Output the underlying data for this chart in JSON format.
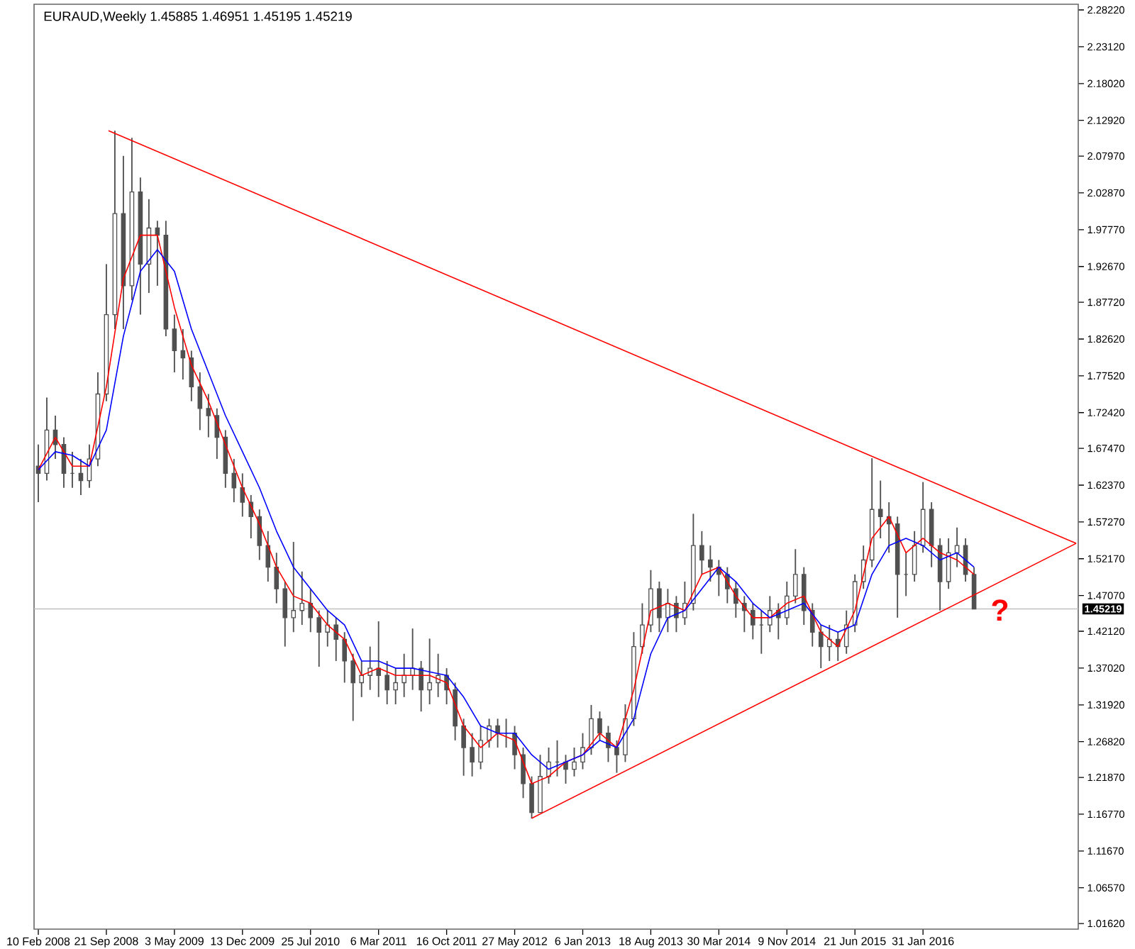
{
  "chart_data": {
    "type": "candlestick",
    "title": "EURAUD,Weekly  1.45885 1.46951 1.45195 1.45219",
    "color": "#505050",
    "x": [
      "2008-02-10",
      "2008-03-09",
      "2008-04-06",
      "2008-05-04",
      "2008-06-01",
      "2008-06-29",
      "2008-07-27",
      "2008-08-24",
      "2008-09-21",
      "2008-10-19",
      "2008-11-16",
      "2008-12-14",
      "2009-01-11",
      "2009-02-08",
      "2009-03-08",
      "2009-04-05",
      "2009-05-03",
      "2009-05-31",
      "2009-06-28",
      "2009-07-26",
      "2009-08-23",
      "2009-09-20",
      "2009-10-18",
      "2009-11-15",
      "2009-12-13",
      "2010-01-10",
      "2010-02-07",
      "2010-03-07",
      "2010-04-04",
      "2010-05-02",
      "2010-05-30",
      "2010-06-27",
      "2010-07-25",
      "2010-08-22",
      "2010-09-19",
      "2010-10-17",
      "2010-11-14",
      "2010-12-12",
      "2011-01-09",
      "2011-02-06",
      "2011-03-06",
      "2011-04-03",
      "2011-05-01",
      "2011-05-29",
      "2011-06-26",
      "2011-07-24",
      "2011-08-21",
      "2011-09-18",
      "2011-10-16",
      "2011-11-13",
      "2011-12-11",
      "2012-01-08",
      "2012-02-05",
      "2012-03-04",
      "2012-04-01",
      "2012-04-29",
      "2012-05-27",
      "2012-06-24",
      "2012-07-22",
      "2012-08-19",
      "2012-09-16",
      "2012-10-14",
      "2012-11-11",
      "2012-12-09",
      "2013-01-06",
      "2013-02-03",
      "2013-03-03",
      "2013-03-31",
      "2013-04-28",
      "2013-05-26",
      "2013-06-23",
      "2013-07-21",
      "2013-08-18",
      "2013-09-15",
      "2013-10-13",
      "2013-11-10",
      "2013-12-08",
      "2014-01-05",
      "2014-02-02",
      "2014-03-02",
      "2014-03-30",
      "2014-04-27",
      "2014-05-25",
      "2014-06-22",
      "2014-07-20",
      "2014-08-17",
      "2014-09-14",
      "2014-10-12",
      "2014-11-09",
      "2014-12-07",
      "2015-01-04",
      "2015-02-01",
      "2015-03-01",
      "2015-03-29",
      "2015-04-26",
      "2015-05-24",
      "2015-06-21",
      "2015-07-19",
      "2015-08-16",
      "2015-09-13",
      "2015-10-11",
      "2015-11-08",
      "2015-12-06",
      "2016-01-03",
      "2016-01-31",
      "2016-02-28",
      "2016-03-27",
      "2016-04-24",
      "2016-05-22",
      "2016-06-19",
      "2016-07-17"
    ],
    "ohlc": [
      [
        1.65,
        1.68,
        1.6,
        1.64
      ],
      [
        1.64,
        1.745,
        1.63,
        1.7
      ],
      [
        1.7,
        1.72,
        1.66,
        1.68
      ],
      [
        1.68,
        1.69,
        1.62,
        1.64
      ],
      [
        1.64,
        1.67,
        1.62,
        1.64
      ],
      [
        1.64,
        1.66,
        1.61,
        1.63
      ],
      [
        1.63,
        1.68,
        1.62,
        1.66
      ],
      [
        1.66,
        1.78,
        1.65,
        1.75
      ],
      [
        1.75,
        1.93,
        1.74,
        1.86
      ],
      [
        1.86,
        2.115,
        1.84,
        2.0
      ],
      [
        2.0,
        2.08,
        1.84,
        1.9
      ],
      [
        1.9,
        2.105,
        1.88,
        2.03
      ],
      [
        2.03,
        2.05,
        1.86,
        1.93
      ],
      [
        1.93,
        2.02,
        1.89,
        1.98
      ],
      [
        1.98,
        1.99,
        1.9,
        1.97
      ],
      [
        1.97,
        1.99,
        1.83,
        1.84
      ],
      [
        1.84,
        1.86,
        1.78,
        1.81
      ],
      [
        1.81,
        1.84,
        1.77,
        1.8
      ],
      [
        1.8,
        1.81,
        1.74,
        1.76
      ],
      [
        1.76,
        1.78,
        1.7,
        1.73
      ],
      [
        1.73,
        1.75,
        1.69,
        1.72
      ],
      [
        1.72,
        1.73,
        1.66,
        1.69
      ],
      [
        1.69,
        1.7,
        1.62,
        1.64
      ],
      [
        1.64,
        1.66,
        1.6,
        1.62
      ],
      [
        1.62,
        1.64,
        1.58,
        1.6
      ],
      [
        1.6,
        1.61,
        1.55,
        1.58
      ],
      [
        1.58,
        1.59,
        1.52,
        1.54
      ],
      [
        1.54,
        1.56,
        1.49,
        1.51
      ],
      [
        1.51,
        1.53,
        1.46,
        1.48
      ],
      [
        1.48,
        1.49,
        1.4,
        1.44
      ],
      [
        1.44,
        1.545,
        1.42,
        1.45
      ],
      [
        1.45,
        1.504,
        1.43,
        1.46
      ],
      [
        1.46,
        1.48,
        1.42,
        1.44
      ],
      [
        1.44,
        1.45,
        1.372,
        1.42
      ],
      [
        1.42,
        1.45,
        1.4,
        1.43
      ],
      [
        1.43,
        1.44,
        1.38,
        1.41
      ],
      [
        1.41,
        1.42,
        1.35,
        1.38
      ],
      [
        1.38,
        1.39,
        1.297,
        1.35
      ],
      [
        1.35,
        1.38,
        1.33,
        1.36
      ],
      [
        1.36,
        1.4,
        1.34,
        1.37
      ],
      [
        1.37,
        1.435,
        1.33,
        1.36
      ],
      [
        1.36,
        1.38,
        1.32,
        1.34
      ],
      [
        1.34,
        1.37,
        1.32,
        1.35
      ],
      [
        1.35,
        1.39,
        1.33,
        1.36
      ],
      [
        1.36,
        1.425,
        1.34,
        1.37
      ],
      [
        1.37,
        1.38,
        1.31,
        1.34
      ],
      [
        1.34,
        1.411,
        1.32,
        1.35
      ],
      [
        1.35,
        1.39,
        1.33,
        1.36
      ],
      [
        1.36,
        1.37,
        1.32,
        1.34
      ],
      [
        1.34,
        1.35,
        1.27,
        1.29
      ],
      [
        1.29,
        1.3,
        1.221,
        1.26
      ],
      [
        1.26,
        1.28,
        1.22,
        1.24
      ],
      [
        1.24,
        1.29,
        1.23,
        1.27
      ],
      [
        1.27,
        1.3,
        1.26,
        1.29
      ],
      [
        1.29,
        1.3,
        1.26,
        1.28
      ],
      [
        1.28,
        1.3,
        1.26,
        1.28
      ],
      [
        1.28,
        1.29,
        1.23,
        1.25
      ],
      [
        1.25,
        1.26,
        1.19,
        1.21
      ],
      [
        1.21,
        1.22,
        1.1617,
        1.17
      ],
      [
        1.17,
        1.25,
        1.17,
        1.22
      ],
      [
        1.22,
        1.26,
        1.21,
        1.24
      ],
      [
        1.24,
        1.27,
        1.22,
        1.24
      ],
      [
        1.24,
        1.25,
        1.21,
        1.23
      ],
      [
        1.23,
        1.26,
        1.22,
        1.24
      ],
      [
        1.24,
        1.28,
        1.23,
        1.26
      ],
      [
        1.26,
        1.319,
        1.25,
        1.3
      ],
      [
        1.3,
        1.31,
        1.27,
        1.28
      ],
      [
        1.28,
        1.29,
        1.24,
        1.26
      ],
      [
        1.26,
        1.27,
        1.225,
        1.25
      ],
      [
        1.25,
        1.32,
        1.24,
        1.3
      ],
      [
        1.3,
        1.42,
        1.29,
        1.4
      ],
      [
        1.4,
        1.46,
        1.39,
        1.43
      ],
      [
        1.43,
        1.506,
        1.42,
        1.48
      ],
      [
        1.48,
        1.49,
        1.42,
        1.44
      ],
      [
        1.44,
        1.48,
        1.42,
        1.46
      ],
      [
        1.46,
        1.47,
        1.42,
        1.44
      ],
      [
        1.44,
        1.49,
        1.43,
        1.46
      ],
      [
        1.46,
        1.584,
        1.45,
        1.54
      ],
      [
        1.54,
        1.56,
        1.5,
        1.52
      ],
      [
        1.52,
        1.54,
        1.49,
        1.51
      ],
      [
        1.51,
        1.52,
        1.47,
        1.5
      ],
      [
        1.5,
        1.51,
        1.46,
        1.48
      ],
      [
        1.48,
        1.49,
        1.44,
        1.46
      ],
      [
        1.46,
        1.47,
        1.42,
        1.45
      ],
      [
        1.45,
        1.46,
        1.41,
        1.43
      ],
      [
        1.43,
        1.45,
        1.39,
        1.43
      ],
      [
        1.43,
        1.47,
        1.42,
        1.45
      ],
      [
        1.45,
        1.46,
        1.41,
        1.44
      ],
      [
        1.44,
        1.49,
        1.43,
        1.47
      ],
      [
        1.47,
        1.535,
        1.46,
        1.5
      ],
      [
        1.5,
        1.51,
        1.43,
        1.45
      ],
      [
        1.45,
        1.46,
        1.4,
        1.42
      ],
      [
        1.42,
        1.43,
        1.37,
        1.4
      ],
      [
        1.4,
        1.43,
        1.38,
        1.41
      ],
      [
        1.41,
        1.42,
        1.38,
        1.4
      ],
      [
        1.4,
        1.45,
        1.39,
        1.43
      ],
      [
        1.43,
        1.5,
        1.42,
        1.49
      ],
      [
        1.49,
        1.54,
        1.48,
        1.52
      ],
      [
        1.52,
        1.661,
        1.51,
        1.59
      ],
      [
        1.59,
        1.63,
        1.55,
        1.58
      ],
      [
        1.58,
        1.6,
        1.53,
        1.57
      ],
      [
        1.57,
        1.58,
        1.44,
        1.5
      ],
      [
        1.5,
        1.53,
        1.47,
        1.5
      ],
      [
        1.5,
        1.56,
        1.49,
        1.54
      ],
      [
        1.54,
        1.628,
        1.53,
        1.59
      ],
      [
        1.59,
        1.6,
        1.51,
        1.54
      ],
      [
        1.54,
        1.55,
        1.45,
        1.49
      ],
      [
        1.49,
        1.55,
        1.48,
        1.53
      ],
      [
        1.53,
        1.565,
        1.51,
        1.54
      ],
      [
        1.54,
        1.55,
        1.49,
        1.5
      ],
      [
        1.5,
        1.51,
        1.45195,
        1.45219
      ]
    ],
    "series": [
      {
        "type": "line",
        "color": "#ff0000",
        "x": [
          "2008-02-10",
          "2008-04-06",
          "2008-06-01",
          "2008-07-27",
          "2008-09-21",
          "2008-11-16",
          "2009-01-11",
          "2009-03-08",
          "2009-05-03",
          "2009-06-28",
          "2009-08-23",
          "2009-10-18",
          "2009-12-13",
          "2010-02-07",
          "2010-04-04",
          "2010-05-30",
          "2010-07-25",
          "2010-09-19",
          "2010-11-14",
          "2011-01-09",
          "2011-03-06",
          "2011-05-01",
          "2011-06-26",
          "2011-08-21",
          "2011-10-16",
          "2011-12-11",
          "2012-02-05",
          "2012-04-01",
          "2012-05-27",
          "2012-07-22",
          "2012-09-16",
          "2012-11-11",
          "2013-01-06",
          "2013-03-03",
          "2013-04-28",
          "2013-06-23",
          "2013-08-18",
          "2013-10-13",
          "2013-12-08",
          "2014-02-02",
          "2014-03-30",
          "2014-05-25",
          "2014-07-20",
          "2014-09-14",
          "2014-11-09",
          "2015-01-04",
          "2015-03-01",
          "2015-04-26",
          "2015-06-21",
          "2015-08-16",
          "2015-10-11",
          "2015-12-06",
          "2016-01-31",
          "2016-03-27",
          "2016-05-22",
          "2016-07-17"
        ],
        "values": [
          1.645,
          1.69,
          1.65,
          1.65,
          1.76,
          1.91,
          1.97,
          1.97,
          1.87,
          1.79,
          1.74,
          1.68,
          1.62,
          1.57,
          1.51,
          1.47,
          1.46,
          1.43,
          1.41,
          1.36,
          1.37,
          1.36,
          1.36,
          1.36,
          1.35,
          1.29,
          1.26,
          1.28,
          1.27,
          1.21,
          1.22,
          1.24,
          1.25,
          1.28,
          1.26,
          1.34,
          1.45,
          1.46,
          1.45,
          1.5,
          1.51,
          1.47,
          1.44,
          1.44,
          1.46,
          1.47,
          1.42,
          1.4,
          1.45,
          1.55,
          1.58,
          1.53,
          1.55,
          1.53,
          1.52,
          1.5
        ]
      },
      {
        "type": "line",
        "color": "#0000ff",
        "x": [
          "2008-02-10",
          "2008-04-06",
          "2008-06-01",
          "2008-07-27",
          "2008-09-21",
          "2008-11-16",
          "2009-01-11",
          "2009-03-08",
          "2009-05-03",
          "2009-06-28",
          "2009-08-23",
          "2009-10-18",
          "2009-12-13",
          "2010-02-07",
          "2010-04-04",
          "2010-05-30",
          "2010-07-25",
          "2010-09-19",
          "2010-11-14",
          "2011-01-09",
          "2011-03-06",
          "2011-05-01",
          "2011-06-26",
          "2011-08-21",
          "2011-10-16",
          "2011-12-11",
          "2012-02-05",
          "2012-04-01",
          "2012-05-27",
          "2012-07-22",
          "2012-09-16",
          "2012-11-11",
          "2013-01-06",
          "2013-03-03",
          "2013-04-28",
          "2013-06-23",
          "2013-08-18",
          "2013-10-13",
          "2013-12-08",
          "2014-02-02",
          "2014-03-30",
          "2014-05-25",
          "2014-07-20",
          "2014-09-14",
          "2014-11-09",
          "2015-01-04",
          "2015-03-01",
          "2015-04-26",
          "2015-06-21",
          "2015-08-16",
          "2015-10-11",
          "2015-12-06",
          "2016-01-31",
          "2016-03-27",
          "2016-05-22",
          "2016-07-17"
        ],
        "values": [
          1.645,
          1.67,
          1.665,
          1.65,
          1.7,
          1.83,
          1.92,
          1.95,
          1.92,
          1.84,
          1.78,
          1.72,
          1.67,
          1.62,
          1.56,
          1.51,
          1.48,
          1.45,
          1.43,
          1.38,
          1.38,
          1.37,
          1.37,
          1.365,
          1.36,
          1.33,
          1.29,
          1.28,
          1.28,
          1.25,
          1.23,
          1.24,
          1.25,
          1.27,
          1.26,
          1.3,
          1.39,
          1.44,
          1.45,
          1.48,
          1.51,
          1.49,
          1.46,
          1.44,
          1.45,
          1.46,
          1.43,
          1.42,
          1.43,
          1.5,
          1.54,
          1.55,
          1.54,
          1.52,
          1.53,
          1.51
        ]
      },
      {
        "type": "line",
        "color": "#ff0000",
        "x": [
          "2008-09-28",
          "2017-06-18"
        ],
        "values": [
          2.115,
          1.543
        ]
      },
      {
        "type": "line",
        "color": "#ff0000",
        "x": [
          "2012-07-22",
          "2017-06-18"
        ],
        "values": [
          1.162,
          1.543
        ]
      }
    ],
    "xlim": [
      "2008-01-27",
      "2017-06-25"
    ],
    "ylim": [
      1.0084,
      2.2901
    ],
    "xticks": [
      {
        "value": "2008-02-10",
        "label": "10 Feb 2008"
      },
      {
        "value": "2008-09-21",
        "label": "21 Sep 2008"
      },
      {
        "value": "2009-05-03",
        "label": "3 May 2009"
      },
      {
        "value": "2009-12-13",
        "label": "13 Dec 2009"
      },
      {
        "value": "2010-07-25",
        "label": "25 Jul 2010"
      },
      {
        "value": "2011-03-06",
        "label": "6 Mar 2011"
      },
      {
        "value": "2011-10-16",
        "label": "16 Oct 2011"
      },
      {
        "value": "2012-05-27",
        "label": "27 May 2012"
      },
      {
        "value": "2013-01-06",
        "label": "6 Jan 2013"
      },
      {
        "value": "2013-08-18",
        "label": "18 Aug 2013"
      },
      {
        "value": "2014-03-30",
        "label": "30 Mar 2014"
      },
      {
        "value": "2014-11-09",
        "label": "9 Nov 2014"
      },
      {
        "value": "2015-06-21",
        "label": "21 Jun 2015"
      },
      {
        "value": "2016-01-31",
        "label": "31 Jan 2016"
      }
    ],
    "yticks": [
      {
        "value": 2.2822,
        "label": "2.28220"
      },
      {
        "value": 2.2312,
        "label": "2.23120"
      },
      {
        "value": 2.1802,
        "label": "2.18020"
      },
      {
        "value": 2.1292,
        "label": "2.12920"
      },
      {
        "value": 2.0797,
        "label": "2.07970"
      },
      {
        "value": 2.0287,
        "label": "2.02870"
      },
      {
        "value": 1.9777,
        "label": "1.97770"
      },
      {
        "value": 1.9267,
        "label": "1.92670"
      },
      {
        "value": 1.8772,
        "label": "1.87720"
      },
      {
        "value": 1.8262,
        "label": "1.82620"
      },
      {
        "value": 1.7752,
        "label": "1.77520"
      },
      {
        "value": 1.7242,
        "label": "1.72420"
      },
      {
        "value": 1.6747,
        "label": "1.67470"
      },
      {
        "value": 1.6237,
        "label": "1.62370"
      },
      {
        "value": 1.5727,
        "label": "1.57270"
      },
      {
        "value": 1.5217,
        "label": "1.52170"
      },
      {
        "value": 1.4707,
        "label": "1.47070"
      },
      {
        "value": 1.4212,
        "label": "1.42120"
      },
      {
        "value": 1.3702,
        "label": "1.37020"
      },
      {
        "value": 1.3192,
        "label": "1.31920"
      },
      {
        "value": 1.2682,
        "label": "1.26820"
      },
      {
        "value": 1.2187,
        "label": "1.21870"
      },
      {
        "value": 1.1677,
        "label": "1.16770"
      },
      {
        "value": 1.1167,
        "label": "1.11670"
      },
      {
        "value": 1.0657,
        "label": "1.06570"
      },
      {
        "value": 1.0162,
        "label": "1.01620"
      }
    ],
    "ref_lines": [
      {
        "axis": "y",
        "value": 1.45219,
        "label": "1.45219",
        "color": "#c0c0c0"
      }
    ],
    "annotations": [
      "?"
    ]
  }
}
